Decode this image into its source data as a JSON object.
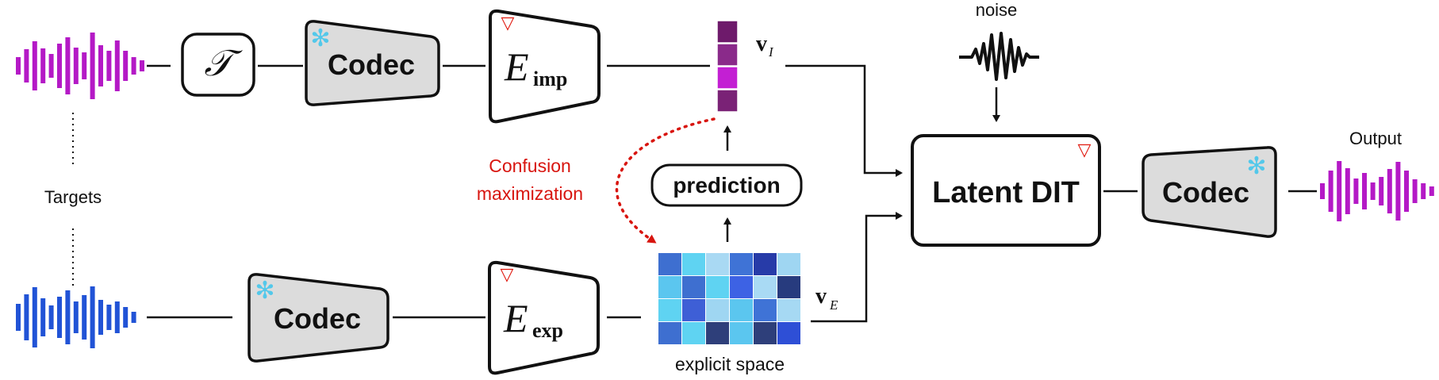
{
  "colors": {
    "target_wave": "#b419c6",
    "explicit_wave": "#2153d6",
    "output_wave": "#b419c6",
    "codec_fill": "#dcdcdc",
    "frozen_snowflake": "#53c8ea",
    "trainable_marker": "#e01a10",
    "confusion_text": "#d8150f",
    "implicit_vector": [
      "#6e1a6b",
      "#8a2a8a",
      "#c31fd3",
      "#7a2276"
    ],
    "explicit_grid": [
      [
        "#3e6fd0",
        "#5fd3f2",
        "#a9d9f3",
        "#3f73d6",
        "#273ba8",
        "#9fd6f2"
      ],
      [
        "#5bc6ef",
        "#3e6fd0",
        "#5fd3f2",
        "#3d62e4",
        "#a9daf4",
        "#273b7e"
      ],
      [
        "#5fd3f2",
        "#3e5fd6",
        "#9fd6f2",
        "#5bc6ef",
        "#3f73d6",
        "#a6d9f3"
      ],
      [
        "#3e6fd0",
        "#5fd3f2",
        "#2e3f7a",
        "#5bc6ef",
        "#2e3f7a",
        "#2e4fd6"
      ]
    ]
  },
  "labels": {
    "noise": "noise",
    "targets": "Targets",
    "output": "Output",
    "confusion_line1": "Confusion",
    "confusion_line2": "maximization",
    "explicit_space": "explicit space",
    "transform_symbol": "𝒯",
    "codec_top": "Codec",
    "codec_bottom": "Codec",
    "codec_output": "Codec",
    "encoder_letter": "E",
    "encoder_imp_sub": "imp",
    "encoder_exp_sub": "exp",
    "prediction": "prediction",
    "latent_dit": "Latent DIT",
    "vector_symbol": "v",
    "vector_imp_sub": "I",
    "vector_exp_sub": "E",
    "snowflake": "✻",
    "trainable_mark": "▽"
  }
}
